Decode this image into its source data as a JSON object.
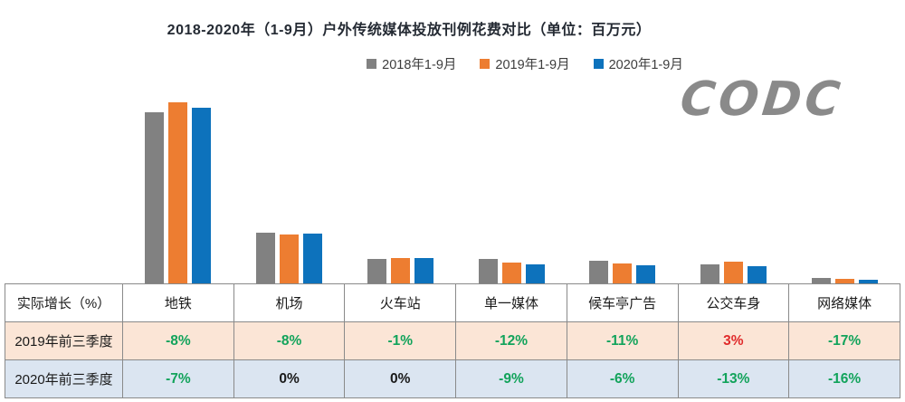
{
  "title": "2018-2020年（1-9月）户外传统媒体投放刊例花费对比（单位：百万元）",
  "logo": {
    "text": "CODC",
    "color": "#8A8A8A"
  },
  "legend": [
    {
      "label": "2018年1-9月",
      "color": "#818181"
    },
    {
      "label": "2019年1-9月",
      "color": "#ED7D31"
    },
    {
      "label": "2020年1-9月",
      "color": "#0D72BC"
    }
  ],
  "chart_data": {
    "type": "bar",
    "title": "2018-2020年（1-9月）户外传统媒体投放刊例花费对比（单位：百万元）",
    "unit": "百万元",
    "categories": [
      "地铁",
      "机场",
      "火车站",
      "单一媒体",
      "候车亭广告",
      "公交车身",
      "网络媒体"
    ],
    "series": [
      {
        "name": "2018年1-9月",
        "color": "#818181",
        "values": [
          189,
          56,
          27,
          27,
          25,
          21,
          6
        ]
      },
      {
        "name": "2019年1-9月",
        "color": "#ED7D31",
        "values": [
          200,
          54,
          28,
          23,
          22,
          24,
          5
        ]
      },
      {
        "name": "2020年1-9月",
        "color": "#0D72BC",
        "values": [
          194,
          55,
          28,
          21,
          20,
          19,
          4
        ]
      }
    ],
    "value_scale": "relative bar heights; chart shows no y-axis tick labels",
    "ylim": [
      0,
      209
    ],
    "grid": false,
    "legend_position": "top-center"
  },
  "table": {
    "corner_label": "实际增长（%）",
    "columns": [
      "地铁",
      "机场",
      "火车站",
      "单一媒体",
      "候车亭广告",
      "公交车身",
      "网络媒体"
    ],
    "rows": [
      {
        "label": "2019年前三季度",
        "bg": "#FBE5D6",
        "values": [
          {
            "text": "-8%",
            "color": "green"
          },
          {
            "text": "-8%",
            "color": "green"
          },
          {
            "text": "-1%",
            "color": "green"
          },
          {
            "text": "-12%",
            "color": "green"
          },
          {
            "text": "-11%",
            "color": "green"
          },
          {
            "text": "3%",
            "color": "red"
          },
          {
            "text": "-17%",
            "color": "green"
          }
        ]
      },
      {
        "label": "2020年前三季度",
        "bg": "#DBE5F1",
        "values": [
          {
            "text": "-7%",
            "color": "green"
          },
          {
            "text": "0%",
            "color": "black"
          },
          {
            "text": "0%",
            "color": "black"
          },
          {
            "text": "-9%",
            "color": "green"
          },
          {
            "text": "-6%",
            "color": "green"
          },
          {
            "text": "-13%",
            "color": "green"
          },
          {
            "text": "-16%",
            "color": "green"
          }
        ]
      }
    ],
    "value_colors": {
      "green": "#12A35B",
      "red": "#E02B2B",
      "black": "#1A1A1A"
    },
    "border_color": "#8A8A8A"
  }
}
